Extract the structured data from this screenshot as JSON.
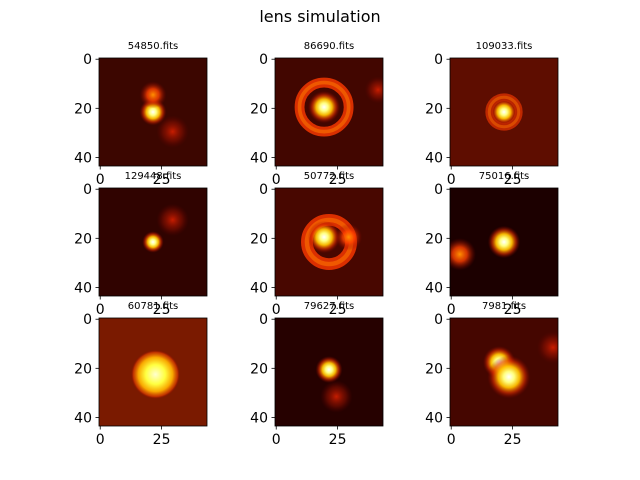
{
  "figure": {
    "title": "lens simulation",
    "colormap": "hot"
  },
  "chart_data": {
    "type": "image-grid",
    "rows": 3,
    "cols": 3,
    "image_size": [
      44,
      44
    ],
    "x_ticks": [
      "0",
      "25"
    ],
    "y_ticks": [
      "0",
      "20",
      "40"
    ],
    "panels": [
      {
        "title": "54850.fits",
        "background": "#3c0600",
        "sources": [
          {
            "x": 22,
            "y": 22,
            "r": 2.5,
            "peak": 1.0
          },
          {
            "x": 22,
            "y": 15,
            "r": 2.5,
            "peak": 0.55
          },
          {
            "x": 30,
            "y": 30,
            "r": 3,
            "peak": 0.45
          }
        ],
        "rings": []
      },
      {
        "title": "86690.fits",
        "background": "#420600",
        "sources": [
          {
            "x": 20,
            "y": 20,
            "r": 3,
            "peak": 1.0
          },
          {
            "x": 42,
            "y": 13,
            "r": 2.5,
            "peak": 0.45
          }
        ],
        "rings": [
          {
            "x": 20,
            "y": 20,
            "radius": 10,
            "width": 2.5,
            "peak": 0.8
          }
        ]
      },
      {
        "title": "109033.fits",
        "background": "#5e0d00",
        "sources": [
          {
            "x": 22,
            "y": 22,
            "r": 2.5,
            "peak": 1.0
          }
        ],
        "rings": [
          {
            "x": 22,
            "y": 22,
            "radius": 6,
            "width": 2,
            "peak": 0.6
          }
        ]
      },
      {
        "title": "129448.fits",
        "background": "#300300",
        "sources": [
          {
            "x": 22,
            "y": 22,
            "r": 2,
            "peak": 1.0
          },
          {
            "x": 30,
            "y": 13,
            "r": 3,
            "peak": 0.35
          }
        ],
        "rings": []
      },
      {
        "title": "50772.fits",
        "background": "#480700",
        "sources": [
          {
            "x": 20,
            "y": 20,
            "r": 3,
            "peak": 1.0
          },
          {
            "x": 30,
            "y": 20,
            "r": 2.5,
            "peak": 0.8
          }
        ],
        "rings": [
          {
            "x": 22,
            "y": 22,
            "radius": 9,
            "width": 3,
            "peak": 0.8
          }
        ]
      },
      {
        "title": "75016.fits",
        "background": "#1c0000",
        "sources": [
          {
            "x": 22,
            "y": 22,
            "r": 3,
            "peak": 1.0
          },
          {
            "x": 4,
            "y": 27,
            "r": 3,
            "peak": 0.75
          }
        ],
        "rings": []
      },
      {
        "title": "60781.fits",
        "background": "#7a1a00",
        "sources": [
          {
            "x": 23,
            "y": 23,
            "r": 8,
            "peak": 1.0
          }
        ],
        "rings": []
      },
      {
        "title": "79627.fits",
        "background": "#260100",
        "sources": [
          {
            "x": 22,
            "y": 21,
            "r": 2.5,
            "peak": 1.0
          },
          {
            "x": 25,
            "y": 32,
            "r": 3,
            "peak": 0.3
          }
        ],
        "rings": []
      },
      {
        "title": "7981.fits",
        "background": "#450600",
        "sources": [
          {
            "x": 20,
            "y": 18,
            "r": 3,
            "peak": 0.9
          },
          {
            "x": 24,
            "y": 24,
            "r": 4,
            "peak": 1.0
          },
          {
            "x": 42,
            "y": 12,
            "r": 3,
            "peak": 0.45
          }
        ],
        "rings": []
      }
    ]
  }
}
